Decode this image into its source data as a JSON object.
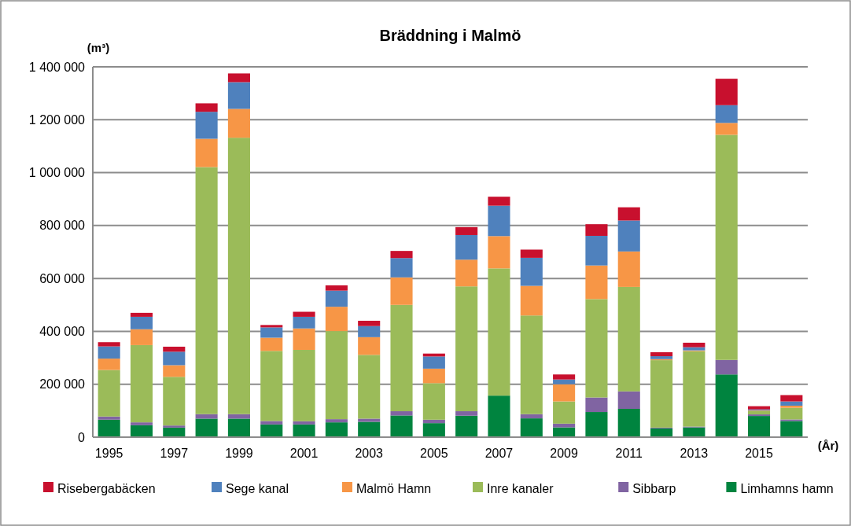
{
  "chart_data": {
    "type": "bar",
    "title": "Bräddning i Malmö",
    "ylabel": "(m³)",
    "xlabel": "(År)",
    "stacked": true,
    "grid": "y",
    "legend": "bottom",
    "categories": [
      "1995",
      null,
      "1997",
      null,
      "1999",
      null,
      "2001",
      null,
      "2003",
      null,
      "2005",
      null,
      "2007",
      null,
      "2009",
      null,
      "2011",
      null,
      "2013",
      null,
      "2015",
      null
    ],
    "ylim": [
      0,
      1400000
    ],
    "yticks": [
      0,
      {
        "value": 200000,
        "label": "200 000"
      },
      {
        "value": 400000,
        "label": "400 000"
      },
      {
        "value": 600000,
        "label": "600 000"
      },
      {
        "value": 800000,
        "label": "800 000"
      },
      {
        "value": 1000000,
        "label": "1 000 000"
      },
      {
        "value": 1200000,
        "label": "1 200 000"
      },
      {
        "value": 1400000,
        "label": "1 400 000"
      }
    ],
    "series": [
      {
        "name": "Limhamns hamn",
        "color": "#00843f",
        "values": [
          66000,
          45000,
          36000,
          70000,
          70000,
          48000,
          48000,
          56000,
          58000,
          82000,
          53000,
          81000,
          157000,
          71000,
          37000,
          95000,
          107000,
          33000,
          37000,
          237000,
          80000,
          61000
        ]
      },
      {
        "name": "Sibbarp",
        "color": "#8064a2",
        "values": [
          12000,
          11000,
          8000,
          17000,
          17000,
          13000,
          12000,
          12000,
          12000,
          16000,
          13000,
          17000,
          null,
          16000,
          14000,
          55000,
          66000,
          3000,
          3000,
          55000,
          6000,
          6000
        ]
      },
      {
        "name": "Inre kanaler",
        "color": "#9bbb59",
        "values": [
          176000,
          292000,
          184000,
          934000,
          1045000,
          265000,
          270000,
          333000,
          241000,
          402000,
          138000,
          472000,
          481000,
          373000,
          84000,
          372000,
          395000,
          255000,
          285000,
          851000,
          13000,
          44000
        ]
      },
      {
        "name": "Malmö Hamn",
        "color": "#f79646",
        "values": [
          43000,
          60000,
          44000,
          107000,
          109000,
          50000,
          81000,
          92000,
          67000,
          104000,
          55000,
          101000,
          122000,
          112000,
          65000,
          127000,
          134000,
          4000,
          3000,
          45000,
          2000,
          8000
        ]
      },
      {
        "name": "Sege kanal",
        "color": "#4f81bd",
        "values": [
          46000,
          47000,
          51000,
          102000,
          101000,
          39000,
          44000,
          61000,
          42000,
          73000,
          46000,
          93000,
          115000,
          106000,
          18000,
          112000,
          117000,
          11000,
          12000,
          67000,
          4000,
          16000
        ]
      },
      {
        "name": "Risebergabäcken",
        "color": "#c8102e",
        "values": [
          16000,
          15000,
          19000,
          32000,
          33000,
          9000,
          19000,
          20000,
          20000,
          27000,
          11000,
          30000,
          34000,
          31000,
          19000,
          44000,
          50000,
          15000,
          17000,
          100000,
          12000,
          24000
        ]
      }
    ]
  }
}
